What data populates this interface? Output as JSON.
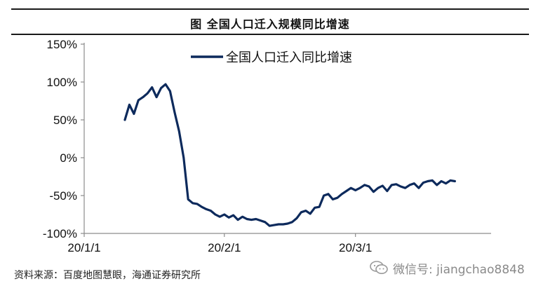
{
  "header": {
    "title": "图  全国人口迁入规模同比增速"
  },
  "source": "资料来源：百度地图慧眼，海通证券研究所",
  "watermark": {
    "icon": "wechat-icon",
    "text": "微信号: jiangchao8848"
  },
  "colors": {
    "series": "#0d2a5c",
    "axis": "#8c8c8c",
    "text": "#111111"
  },
  "chart_data": {
    "type": "line",
    "title": "",
    "xlabel": "",
    "ylabel": "",
    "x_range": [
      "2020-01-01",
      "2020-03-31"
    ],
    "ylim": [
      -100,
      150
    ],
    "grid": false,
    "legend": "top-center",
    "x_tick_labels": [
      {
        "date": "2020-01-01",
        "label": "20/1/1"
      },
      {
        "date": "2020-02-01",
        "label": "20/2/1"
      },
      {
        "date": "2020-03-01",
        "label": "20/3/1"
      }
    ],
    "y_tick_labels": [
      {
        "value": 150,
        "label": "150%"
      },
      {
        "value": 100,
        "label": "100%"
      },
      {
        "value": 50,
        "label": "50%"
      },
      {
        "value": 0,
        "label": "0%"
      },
      {
        "value": -50,
        "label": "-50%"
      },
      {
        "value": -100,
        "label": "-100%"
      }
    ],
    "series": [
      {
        "name": "全国人口迁入同比增速",
        "points": [
          [
            "2020-01-10",
            50
          ],
          [
            "2020-01-11",
            70
          ],
          [
            "2020-01-12",
            58
          ],
          [
            "2020-01-13",
            76
          ],
          [
            "2020-01-14",
            80
          ],
          [
            "2020-01-15",
            85
          ],
          [
            "2020-01-16",
            93
          ],
          [
            "2020-01-17",
            80
          ],
          [
            "2020-01-18",
            92
          ],
          [
            "2020-01-19",
            97
          ],
          [
            "2020-01-20",
            88
          ],
          [
            "2020-01-21",
            60
          ],
          [
            "2020-01-22",
            35
          ],
          [
            "2020-01-23",
            0
          ],
          [
            "2020-01-24",
            -55
          ],
          [
            "2020-01-25",
            -60
          ],
          [
            "2020-01-26",
            -61
          ],
          [
            "2020-01-27",
            -65
          ],
          [
            "2020-01-28",
            -68
          ],
          [
            "2020-01-29",
            -70
          ],
          [
            "2020-01-30",
            -75
          ],
          [
            "2020-01-31",
            -78
          ],
          [
            "2020-02-01",
            -75
          ],
          [
            "2020-02-02",
            -79
          ],
          [
            "2020-02-03",
            -76
          ],
          [
            "2020-02-04",
            -82
          ],
          [
            "2020-02-05",
            -78
          ],
          [
            "2020-02-06",
            -81
          ],
          [
            "2020-02-07",
            -82
          ],
          [
            "2020-02-08",
            -81
          ],
          [
            "2020-02-09",
            -83
          ],
          [
            "2020-02-10",
            -85
          ],
          [
            "2020-02-11",
            -90
          ],
          [
            "2020-02-12",
            -89
          ],
          [
            "2020-02-13",
            -88
          ],
          [
            "2020-02-14",
            -88
          ],
          [
            "2020-02-15",
            -87
          ],
          [
            "2020-02-16",
            -85
          ],
          [
            "2020-02-17",
            -80
          ],
          [
            "2020-02-18",
            -72
          ],
          [
            "2020-02-19",
            -70
          ],
          [
            "2020-02-20",
            -74
          ],
          [
            "2020-02-21",
            -66
          ],
          [
            "2020-02-22",
            -65
          ],
          [
            "2020-02-23",
            -50
          ],
          [
            "2020-02-24",
            -48
          ],
          [
            "2020-02-25",
            -55
          ],
          [
            "2020-02-26",
            -53
          ],
          [
            "2020-02-27",
            -48
          ],
          [
            "2020-02-28",
            -44
          ],
          [
            "2020-02-29",
            -40
          ],
          [
            "2020-03-01",
            -43
          ],
          [
            "2020-03-02",
            -40
          ],
          [
            "2020-03-03",
            -36
          ],
          [
            "2020-03-04",
            -38
          ],
          [
            "2020-03-05",
            -45
          ],
          [
            "2020-03-06",
            -40
          ],
          [
            "2020-03-07",
            -37
          ],
          [
            "2020-03-08",
            -44
          ],
          [
            "2020-03-09",
            -36
          ],
          [
            "2020-03-10",
            -35
          ],
          [
            "2020-03-11",
            -38
          ],
          [
            "2020-03-12",
            -40
          ],
          [
            "2020-03-13",
            -36
          ],
          [
            "2020-03-14",
            -34
          ],
          [
            "2020-03-15",
            -40
          ],
          [
            "2020-03-16",
            -33
          ],
          [
            "2020-03-17",
            -31
          ],
          [
            "2020-03-18",
            -30
          ],
          [
            "2020-03-19",
            -36
          ],
          [
            "2020-03-20",
            -31
          ],
          [
            "2020-03-21",
            -34
          ],
          [
            "2020-03-22",
            -30
          ],
          [
            "2020-03-23",
            -31
          ]
        ]
      }
    ]
  }
}
